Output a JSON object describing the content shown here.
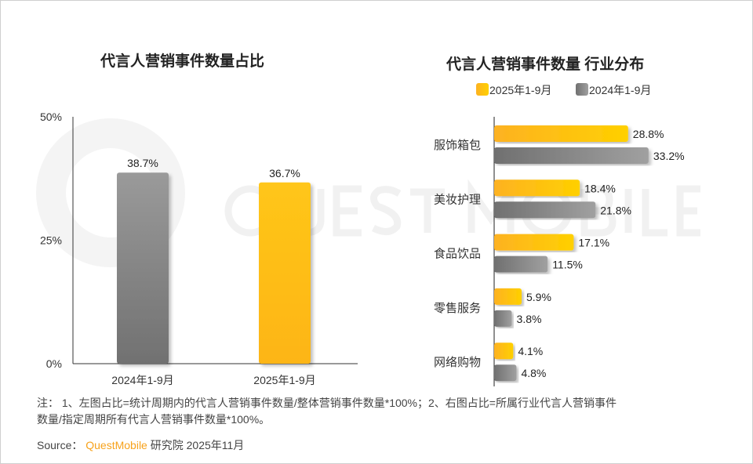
{
  "chart_data": [
    {
      "type": "bar",
      "title": "代言人营销事件数量占比",
      "categories": [
        "2024年1-9月",
        "2025年1-9月"
      ],
      "values": [
        38.7,
        36.7
      ],
      "labels": [
        "38.7%",
        "36.7%"
      ],
      "colors": [
        "#808080",
        "#fdbb1a"
      ],
      "ylim": [
        0,
        50
      ],
      "yticks": [
        "0%",
        "25%",
        "50%"
      ],
      "grid": false
    },
    {
      "type": "bar",
      "orientation": "horizontal",
      "title": "代言人营销事件数量 行业分布",
      "categories": [
        "服饰箱包",
        "美妆护理",
        "食品饮品",
        "零售服务",
        "网络购物"
      ],
      "series": [
        {
          "name": "2025年1-9月",
          "values": [
            28.8,
            18.4,
            17.1,
            5.9,
            4.1
          ],
          "labels": [
            "28.8%",
            "18.4%",
            "17.1%",
            "5.9%",
            "4.1%"
          ],
          "color": "#fdbb1a"
        },
        {
          "name": "2024年1-9月",
          "values": [
            33.2,
            21.8,
            11.5,
            3.8,
            4.8
          ],
          "labels": [
            "33.2%",
            "21.8%",
            "11.5%",
            "3.8%",
            "4.8%"
          ],
          "color": "#808080"
        }
      ],
      "legend": "top",
      "grid": false
    }
  ],
  "footer": {
    "note_line1": "注： 1、左图占比=统计周期内的代言人营销事件数量/整体营销事件数量*100%；2、右图占比=所属行业代言人营销事件",
    "note_line2": "数量/指定周期所有代言人营销事件数量*100%。",
    "source_label": "Source：",
    "brand": "QuestMobile",
    "source_rest": "研究院 2025年11月",
    "brand_color": "#f7a21b"
  },
  "watermark": "QUEST MOBILE"
}
